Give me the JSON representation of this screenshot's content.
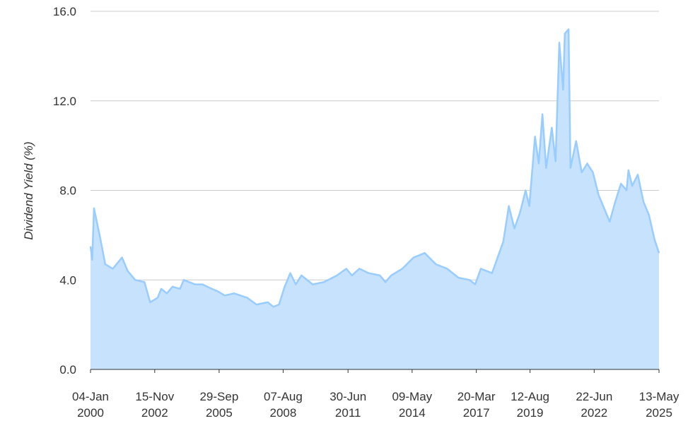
{
  "chart_data": {
    "type": "area",
    "y_label": "Dividend Yield (%)",
    "x": [
      "2000-01-04",
      "2000-02-01",
      "2000-03-01",
      "2000-04-01",
      "2000-06-01",
      "2000-09-01",
      "2001-01-01",
      "2001-06-01",
      "2001-09-01",
      "2002-01-01",
      "2002-06-01",
      "2002-09-01",
      "2003-01-01",
      "2003-03-01",
      "2003-06-01",
      "2003-09-01",
      "2004-01-01",
      "2004-03-01",
      "2004-09-01",
      "2005-01-01",
      "2005-06-01",
      "2005-09-01",
      "2006-01-01",
      "2006-06-01",
      "2007-01-01",
      "2007-06-01",
      "2007-12-01",
      "2008-03-01",
      "2008-06-01",
      "2008-09-01",
      "2008-12-01",
      "2009-03-01",
      "2009-06-01",
      "2009-12-01",
      "2010-06-01",
      "2011-01-01",
      "2011-06-01",
      "2011-09-01",
      "2012-01-01",
      "2012-06-01",
      "2012-12-01",
      "2013-03-01",
      "2013-06-01",
      "2013-12-01",
      "2014-06-01",
      "2014-12-01",
      "2015-06-01",
      "2015-12-01",
      "2016-06-01",
      "2016-12-01",
      "2017-03-01",
      "2017-06-01",
      "2017-12-01",
      "2018-03-01",
      "2018-06-01",
      "2018-09-01",
      "2018-12-01",
      "2019-03-01",
      "2019-06-01",
      "2019-08-01",
      "2019-11-01",
      "2020-01-01",
      "2020-03-01",
      "2020-05-01",
      "2020-08-01",
      "2020-10-01",
      "2020-12-01",
      "2021-02-01",
      "2021-03-01",
      "2021-05-01",
      "2021-06-01",
      "2021-09-01",
      "2021-12-01",
      "2022-03-01",
      "2022-06-01",
      "2022-09-01",
      "2022-12-01",
      "2023-03-01",
      "2023-06-01",
      "2023-09-01",
      "2023-12-01",
      "2024-01-01",
      "2024-03-01",
      "2024-06-01",
      "2024-09-01",
      "2024-12-01",
      "2025-03-01",
      "2025-05-13"
    ],
    "values": [
      5.5,
      4.9,
      7.2,
      6.8,
      6.0,
      4.7,
      4.5,
      5.0,
      4.4,
      4.0,
      3.9,
      3.0,
      3.2,
      3.6,
      3.4,
      3.7,
      3.6,
      4.0,
      3.8,
      3.8,
      3.6,
      3.5,
      3.3,
      3.4,
      3.2,
      2.9,
      3.0,
      2.8,
      2.9,
      3.7,
      4.3,
      3.8,
      4.2,
      3.8,
      3.9,
      4.2,
      4.5,
      4.2,
      4.5,
      4.3,
      4.2,
      3.9,
      4.2,
      4.5,
      5.0,
      5.2,
      4.7,
      4.5,
      4.1,
      4.0,
      3.8,
      4.5,
      4.3,
      5.0,
      5.7,
      7.3,
      6.3,
      7.0,
      8.0,
      7.3,
      10.4,
      9.2,
      11.4,
      9.0,
      10.8,
      9.3,
      14.6,
      12.5,
      15.0,
      15.2,
      9.0,
      10.2,
      8.8,
      9.2,
      8.8,
      7.8,
      7.2,
      6.6,
      7.5,
      8.3,
      8.0,
      8.9,
      8.2,
      8.7,
      7.5,
      6.9,
      5.8,
      5.2
    ],
    "color": "#99ccff",
    "area_color": "#c6e2fd",
    "xlim": [
      "2000-01-04",
      "2025-05-13"
    ],
    "xticks": [
      {
        "value": "2000-01-04",
        "label": [
          "04-Jan",
          "2000"
        ]
      },
      {
        "value": "2002-11-15",
        "label": [
          "15-Nov",
          "2002"
        ]
      },
      {
        "value": "2005-09-29",
        "label": [
          "29-Sep",
          "2005"
        ]
      },
      {
        "value": "2008-08-07",
        "label": [
          "07-Aug",
          "2008"
        ]
      },
      {
        "value": "2011-06-30",
        "label": [
          "30-Jun",
          "2011"
        ]
      },
      {
        "value": "2014-05-09",
        "label": [
          "09-May",
          "2014"
        ]
      },
      {
        "value": "2017-03-20",
        "label": [
          "20-Mar",
          "2017"
        ]
      },
      {
        "value": "2019-08-12",
        "label": [
          "12-Aug",
          "2019"
        ]
      },
      {
        "value": "2022-06-22",
        "label": [
          "22-Jun",
          "2022"
        ]
      },
      {
        "value": "2025-05-13",
        "label": [
          "13-May",
          "2025"
        ]
      }
    ],
    "ylim": [
      0,
      16
    ],
    "yticks": [
      {
        "value": 0,
        "label": "0.0"
      },
      {
        "value": 4,
        "label": "4.0"
      },
      {
        "value": 8,
        "label": "8.0"
      },
      {
        "value": 12,
        "label": "12.0"
      },
      {
        "value": 16,
        "label": "16.0"
      }
    ],
    "grid": true
  }
}
